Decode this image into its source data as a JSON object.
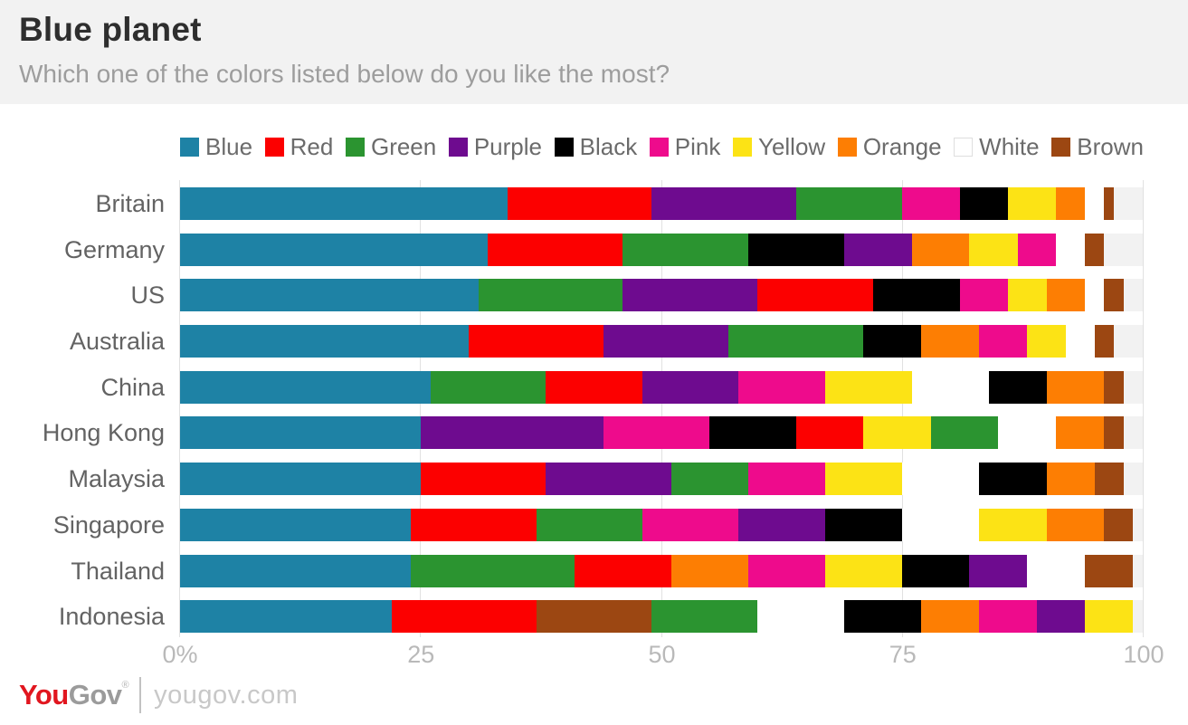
{
  "header": {
    "title": "Blue planet",
    "subtitle": "Which one of the colors listed below do you like the most?"
  },
  "legend": [
    {
      "label": "Blue",
      "color": "#1e82a5"
    },
    {
      "label": "Red",
      "color": "#fc0000"
    },
    {
      "label": "Green",
      "color": "#2b9430"
    },
    {
      "label": "Purple",
      "color": "#6e0b8f"
    },
    {
      "label": "Black",
      "color": "#000000"
    },
    {
      "label": "Pink",
      "color": "#ee0b8c"
    },
    {
      "label": "Yellow",
      "color": "#fce315"
    },
    {
      "label": "Orange",
      "color": "#fd7e03"
    },
    {
      "label": "White",
      "color": "#ffffff"
    },
    {
      "label": "Brown",
      "color": "#9c4712"
    }
  ],
  "chart_data": {
    "type": "bar",
    "stacked": true,
    "orientation": "horizontal",
    "unit": "percent",
    "title": "Blue planet",
    "xlabel": "",
    "ylabel": "",
    "xlim": [
      0,
      100
    ],
    "grid": true,
    "legend_position": "top",
    "colors": {
      "Blue": "#1e82a5",
      "Red": "#fc0000",
      "Green": "#2b9430",
      "Purple": "#6e0b8f",
      "Black": "#000000",
      "Pink": "#ee0b8c",
      "Yellow": "#fce315",
      "Orange": "#fd7e03",
      "White": "#ffffff",
      "Brown": "#9c4712"
    },
    "categories": [
      "Britain",
      "Germany",
      "US",
      "Australia",
      "China",
      "Hong Kong",
      "Malaysia",
      "Singapore",
      "Thailand",
      "Indonesia"
    ],
    "ticks": [
      {
        "label": "0%",
        "value": 0
      },
      {
        "label": "25",
        "value": 25
      },
      {
        "label": "50",
        "value": 50
      },
      {
        "label": "75",
        "value": 75
      },
      {
        "label": "100",
        "value": 100
      }
    ],
    "rows": [
      {
        "country": "Britain",
        "segments": [
          {
            "color": "Blue",
            "value": 34
          },
          {
            "color": "Red",
            "value": 15
          },
          {
            "color": "Purple",
            "value": 15
          },
          {
            "color": "Green",
            "value": 11
          },
          {
            "color": "Pink",
            "value": 6
          },
          {
            "color": "Black",
            "value": 5
          },
          {
            "color": "Yellow",
            "value": 5
          },
          {
            "color": "Orange",
            "value": 3
          },
          {
            "color": "White",
            "value": 2
          },
          {
            "color": "Brown",
            "value": 1
          }
        ]
      },
      {
        "country": "Germany",
        "segments": [
          {
            "color": "Blue",
            "value": 32
          },
          {
            "color": "Red",
            "value": 14
          },
          {
            "color": "Green",
            "value": 13
          },
          {
            "color": "Black",
            "value": 10
          },
          {
            "color": "Purple",
            "value": 7
          },
          {
            "color": "Orange",
            "value": 6
          },
          {
            "color": "Yellow",
            "value": 5
          },
          {
            "color": "Pink",
            "value": 4
          },
          {
            "color": "White",
            "value": 3
          },
          {
            "color": "Brown",
            "value": 2
          }
        ]
      },
      {
        "country": "US",
        "segments": [
          {
            "color": "Blue",
            "value": 31
          },
          {
            "color": "Green",
            "value": 15
          },
          {
            "color": "Purple",
            "value": 14
          },
          {
            "color": "Red",
            "value": 12
          },
          {
            "color": "Black",
            "value": 9
          },
          {
            "color": "Pink",
            "value": 5
          },
          {
            "color": "Yellow",
            "value": 4
          },
          {
            "color": "Orange",
            "value": 4
          },
          {
            "color": "White",
            "value": 2
          },
          {
            "color": "Brown",
            "value": 2
          }
        ]
      },
      {
        "country": "Australia",
        "segments": [
          {
            "color": "Blue",
            "value": 30
          },
          {
            "color": "Red",
            "value": 14
          },
          {
            "color": "Purple",
            "value": 13
          },
          {
            "color": "Green",
            "value": 14
          },
          {
            "color": "Black",
            "value": 6
          },
          {
            "color": "Orange",
            "value": 6
          },
          {
            "color": "Pink",
            "value": 5
          },
          {
            "color": "Yellow",
            "value": 4
          },
          {
            "color": "White",
            "value": 3
          },
          {
            "color": "Brown",
            "value": 2
          }
        ]
      },
      {
        "country": "China",
        "segments": [
          {
            "color": "Blue",
            "value": 26
          },
          {
            "color": "Green",
            "value": 12
          },
          {
            "color": "Red",
            "value": 10
          },
          {
            "color": "Purple",
            "value": 10
          },
          {
            "color": "Pink",
            "value": 9
          },
          {
            "color": "Yellow",
            "value": 9
          },
          {
            "color": "White",
            "value": 8
          },
          {
            "color": "Black",
            "value": 6
          },
          {
            "color": "Orange",
            "value": 6
          },
          {
            "color": "Brown",
            "value": 2
          }
        ]
      },
      {
        "country": "Hong Kong",
        "segments": [
          {
            "color": "Blue",
            "value": 25
          },
          {
            "color": "Purple",
            "value": 19
          },
          {
            "color": "Pink",
            "value": 11
          },
          {
            "color": "Black",
            "value": 9
          },
          {
            "color": "Red",
            "value": 7
          },
          {
            "color": "Yellow",
            "value": 7
          },
          {
            "color": "Green",
            "value": 7
          },
          {
            "color": "White",
            "value": 6
          },
          {
            "color": "Orange",
            "value": 5
          },
          {
            "color": "Brown",
            "value": 2
          }
        ]
      },
      {
        "country": "Malaysia",
        "segments": [
          {
            "color": "Blue",
            "value": 25
          },
          {
            "color": "Red",
            "value": 13
          },
          {
            "color": "Purple",
            "value": 13
          },
          {
            "color": "Green",
            "value": 8
          },
          {
            "color": "Pink",
            "value": 8
          },
          {
            "color": "Yellow",
            "value": 8
          },
          {
            "color": "White",
            "value": 8
          },
          {
            "color": "Black",
            "value": 7
          },
          {
            "color": "Orange",
            "value": 5
          },
          {
            "color": "Brown",
            "value": 3
          }
        ]
      },
      {
        "country": "Singapore",
        "segments": [
          {
            "color": "Blue",
            "value": 24
          },
          {
            "color": "Red",
            "value": 13
          },
          {
            "color": "Green",
            "value": 11
          },
          {
            "color": "Pink",
            "value": 10
          },
          {
            "color": "Purple",
            "value": 9
          },
          {
            "color": "Black",
            "value": 8
          },
          {
            "color": "White",
            "value": 8
          },
          {
            "color": "Yellow",
            "value": 7
          },
          {
            "color": "Orange",
            "value": 6
          },
          {
            "color": "Brown",
            "value": 3
          }
        ]
      },
      {
        "country": "Thailand",
        "segments": [
          {
            "color": "Blue",
            "value": 24
          },
          {
            "color": "Green",
            "value": 17
          },
          {
            "color": "Red",
            "value": 10
          },
          {
            "color": "Orange",
            "value": 8
          },
          {
            "color": "Pink",
            "value": 8
          },
          {
            "color": "Yellow",
            "value": 8
          },
          {
            "color": "Black",
            "value": 7
          },
          {
            "color": "Purple",
            "value": 6
          },
          {
            "color": "White",
            "value": 6
          },
          {
            "color": "Brown",
            "value": 5
          }
        ]
      },
      {
        "country": "Indonesia",
        "segments": [
          {
            "color": "Blue",
            "value": 22
          },
          {
            "color": "Red",
            "value": 15
          },
          {
            "color": "Brown",
            "value": 12
          },
          {
            "color": "Green",
            "value": 11
          },
          {
            "color": "White",
            "value": 9
          },
          {
            "color": "Black",
            "value": 8
          },
          {
            "color": "Orange",
            "value": 6
          },
          {
            "color": "Pink",
            "value": 6
          },
          {
            "color": "Purple",
            "value": 5
          },
          {
            "color": "Yellow",
            "value": 5
          }
        ]
      }
    ]
  },
  "footer": {
    "logo_you": "You",
    "logo_gov": "Gov",
    "logo_reg": "®",
    "site": "yougov.com"
  }
}
